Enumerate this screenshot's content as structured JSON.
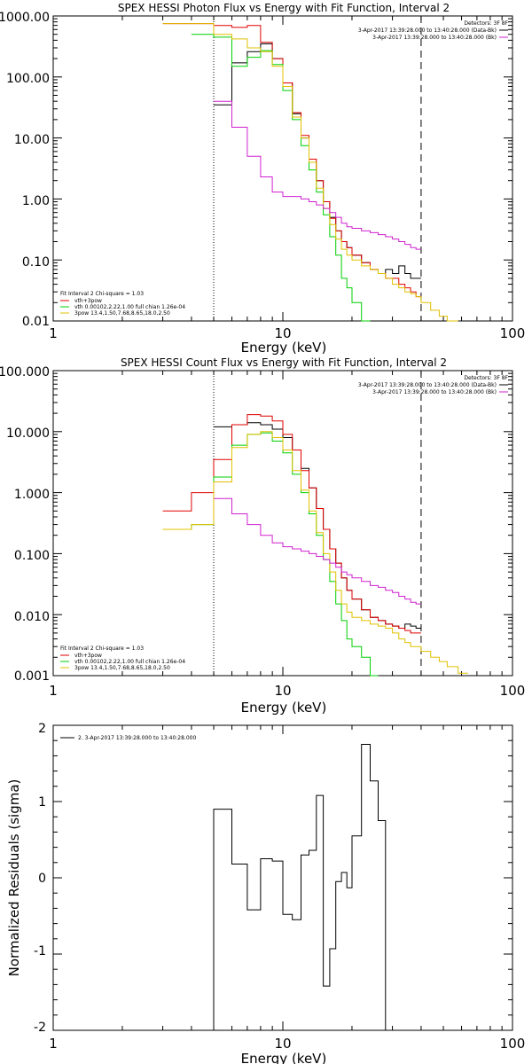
{
  "chart_data": [
    {
      "type": "line",
      "title": "SPEX HESSI Photon Flux vs Energy with Fit Function, Interval 2",
      "xlabel": "Energy (keV)",
      "ylabel": "",
      "xscale": "log",
      "yscale": "log",
      "xlim": [
        1,
        100
      ],
      "ylim": [
        0.01,
        1000
      ],
      "x_ticks": [
        "1",
        "10",
        "100"
      ],
      "y_ticks": [
        "0.01",
        "0.10",
        "1.00",
        "10.00",
        "100.00",
        "1000.00"
      ],
      "header": [
        "Detectors: 3F 8F",
        "3-Apr-2017 13:39:28.000 to 13:40:28.000 (Data-Bk)",
        "3-Apr-2017 13:39:28.000 to 13:40:28.000 (Bk)"
      ],
      "header_colors": [
        "#000000",
        "#000000",
        "#d020d0"
      ],
      "legend": [
        "Fit Interval 2   Chi-square = 1.03",
        "vth+3pow",
        "vth 0.00102,2.22,1.00  full chian 1.26e-04",
        "3pow 13.4,1.50,7.68,8.65,18.0,2.50"
      ],
      "legend_colors": [
        "#000000",
        "#e00000",
        "#00d000",
        "#e0c000"
      ],
      "vlines": [
        {
          "x": 5.0,
          "style": "dotted",
          "color": "#000000"
        },
        {
          "x": 40.0,
          "style": "dashed",
          "color": "#000000"
        }
      ],
      "series": [
        {
          "color": "#000000",
          "x": [
            3,
            4,
            5,
            6,
            7,
            8,
            9,
            10,
            11,
            12,
            13,
            14,
            15,
            16,
            17,
            18,
            19,
            20,
            22,
            24,
            26,
            28,
            30,
            32,
            34,
            36,
            38,
            40
          ],
          "values": [
            null,
            null,
            35,
            170,
            260,
            350,
            200,
            80,
            25,
            10,
            4,
            2.0,
            0.9,
            0.5,
            0.3,
            0.2,
            0.16,
            0.12,
            0.09,
            0.07,
            0.06,
            0.07,
            0.06,
            0.08,
            0.06,
            0.05,
            0.05,
            null
          ]
        },
        {
          "color": "#e00000",
          "x": [
            3,
            4,
            5,
            6,
            7,
            8,
            9,
            10,
            11,
            12,
            13,
            14,
            15,
            16,
            17,
            18,
            19,
            20,
            22,
            24,
            26,
            28,
            30,
            32,
            34,
            36,
            38,
            40
          ],
          "values": [
            750,
            750,
            700,
            650,
            700,
            370,
            200,
            80,
            26,
            11,
            4.5,
            2.0,
            0.9,
            0.48,
            0.3,
            0.2,
            0.16,
            0.12,
            0.09,
            0.07,
            0.06,
            0.05,
            0.05,
            0.04,
            0.035,
            0.03,
            0.025,
            null
          ]
        },
        {
          "color": "#00d000",
          "x": [
            3,
            4,
            5,
            6,
            7,
            8,
            9,
            10,
            11,
            12,
            13,
            14,
            15,
            16,
            17,
            18,
            19,
            20,
            22,
            24,
            26,
            28,
            30,
            32,
            34,
            36,
            38,
            40
          ],
          "values": [
            null,
            500,
            450,
            150,
            210,
            270,
            160,
            60,
            20,
            7.5,
            3.0,
            1.3,
            0.55,
            0.24,
            0.12,
            0.05,
            0.035,
            0.02,
            0.01,
            null,
            null,
            null,
            null,
            null,
            null,
            null,
            null,
            null
          ]
        },
        {
          "color": "#e0c000",
          "x": [
            3,
            4,
            5,
            6,
            7,
            8,
            9,
            10,
            11,
            12,
            13,
            14,
            15,
            16,
            17,
            18,
            19,
            20,
            22,
            24,
            26,
            28,
            30,
            32,
            34,
            36,
            38,
            40,
            44,
            48,
            52,
            58
          ],
          "values": [
            750,
            750,
            500,
            420,
            300,
            260,
            150,
            70,
            22,
            10,
            4.0,
            1.5,
            0.7,
            0.38,
            0.22,
            0.15,
            0.12,
            0.1,
            0.08,
            0.07,
            0.06,
            0.05,
            0.04,
            0.035,
            0.03,
            0.028,
            0.025,
            0.02,
            0.015,
            0.012,
            0.01,
            null
          ]
        },
        {
          "color": "#d020d0",
          "x": [
            5,
            6,
            7,
            8,
            9,
            10,
            11,
            12,
            13,
            14,
            15,
            16,
            17,
            18,
            19,
            20,
            22,
            24,
            26,
            28,
            30,
            32,
            34,
            36,
            38,
            40
          ],
          "values": [
            40,
            15,
            5.0,
            2.3,
            1.3,
            1.1,
            1.1,
            1.0,
            0.9,
            0.8,
            0.7,
            0.6,
            0.5,
            0.4,
            0.35,
            0.33,
            0.3,
            0.28,
            0.26,
            0.24,
            0.22,
            0.2,
            0.18,
            0.16,
            0.15,
            null
          ]
        }
      ]
    },
    {
      "type": "line",
      "title": "SPEX HESSI Count Flux vs Energy with Fit Function, Interval 2",
      "xlabel": "Energy (keV)",
      "ylabel": "",
      "xscale": "log",
      "yscale": "log",
      "xlim": [
        1,
        100
      ],
      "ylim": [
        0.001,
        100
      ],
      "x_ticks": [
        "1",
        "10",
        "100"
      ],
      "y_ticks": [
        "0.001",
        "0.010",
        "0.100",
        "1.000",
        "10.000",
        "100.000"
      ],
      "header": [
        "Detectors: 3F 8F",
        "3-Apr-2017 13:39:28.000 to 13:40:28.000 (Data-Bk)",
        "3-Apr-2017 13:39:28.000 to 13:40:28.000 (Bk)"
      ],
      "header_colors": [
        "#000000",
        "#000000",
        "#d020d0"
      ],
      "legend": [
        "Fit Interval 2   Chi-square = 1.03",
        "vth+3pow",
        "vth 0.00102,2.22,1.00  full chian 1.26e-04",
        "3pow 13.4,1.50,7.68,8.65,18.0,2.50"
      ],
      "legend_colors": [
        "#000000",
        "#e00000",
        "#00d000",
        "#e0c000"
      ],
      "vlines": [
        {
          "x": 5.0,
          "style": "dotted",
          "color": "#000000"
        },
        {
          "x": 40.0,
          "style": "dashed",
          "color": "#000000"
        }
      ],
      "series": [
        {
          "color": "#000000",
          "x": [
            3,
            4,
            5,
            6,
            7,
            8,
            9,
            10,
            11,
            12,
            13,
            14,
            15,
            16,
            17,
            18,
            19,
            20,
            22,
            24,
            26,
            28,
            30,
            32,
            34,
            36,
            38,
            40
          ],
          "values": [
            null,
            null,
            12,
            13,
            14,
            13,
            11,
            8,
            5,
            2.5,
            1.2,
            0.55,
            0.25,
            0.12,
            0.07,
            0.04,
            0.025,
            0.018,
            0.012,
            0.009,
            0.008,
            0.007,
            0.0065,
            0.006,
            0.007,
            0.0065,
            0.006,
            null
          ]
        },
        {
          "color": "#e00000",
          "x": [
            3,
            4,
            5,
            6,
            7,
            8,
            9,
            10,
            11,
            12,
            13,
            14,
            15,
            16,
            17,
            18,
            19,
            20,
            22,
            24,
            26,
            28,
            30,
            32,
            34,
            36,
            38,
            40
          ],
          "values": [
            0.5,
            1.0,
            3.5,
            13,
            19,
            18,
            15,
            9,
            5,
            2.3,
            1.2,
            0.55,
            0.25,
            0.12,
            0.07,
            0.04,
            0.025,
            0.018,
            0.012,
            0.009,
            0.008,
            0.007,
            0.0065,
            0.006,
            0.0055,
            0.005,
            0.005,
            null
          ]
        },
        {
          "color": "#00d000",
          "x": [
            3,
            4,
            5,
            6,
            7,
            8,
            9,
            10,
            11,
            12,
            13,
            14,
            15,
            16,
            17,
            18,
            19,
            20,
            22,
            24,
            26,
            28,
            30,
            32,
            34,
            36,
            38,
            40
          ],
          "values": [
            0.25,
            0.3,
            1.8,
            6,
            9,
            9.5,
            7,
            4.5,
            2.0,
            1.0,
            0.45,
            0.2,
            0.08,
            0.035,
            0.015,
            0.008,
            0.004,
            0.003,
            0.002,
            0.001,
            null,
            null,
            null,
            null,
            null,
            null,
            null,
            null
          ]
        },
        {
          "color": "#e0c000",
          "x": [
            3,
            4,
            5,
            6,
            7,
            8,
            9,
            10,
            11,
            12,
            13,
            14,
            15,
            16,
            17,
            18,
            19,
            20,
            22,
            24,
            26,
            28,
            30,
            32,
            34,
            36,
            38,
            40,
            44,
            48,
            52,
            58,
            64
          ],
          "values": [
            0.25,
            0.3,
            1.5,
            5.5,
            9,
            10,
            8,
            5,
            2.3,
            1.1,
            0.5,
            0.22,
            0.1,
            0.05,
            0.025,
            0.015,
            0.011,
            0.009,
            0.008,
            0.007,
            0.0065,
            0.006,
            0.005,
            0.004,
            0.0035,
            0.003,
            0.003,
            0.0025,
            0.002,
            0.0017,
            0.0014,
            0.0011,
            null
          ]
        },
        {
          "color": "#d020d0",
          "x": [
            5,
            6,
            7,
            8,
            9,
            10,
            11,
            12,
            13,
            14,
            15,
            16,
            17,
            18,
            19,
            20,
            22,
            24,
            26,
            28,
            30,
            32,
            34,
            36,
            38,
            40
          ],
          "values": [
            0.8,
            0.45,
            0.3,
            0.2,
            0.15,
            0.13,
            0.12,
            0.11,
            0.1,
            0.09,
            0.08,
            0.07,
            0.06,
            0.05,
            0.045,
            0.04,
            0.035,
            0.03,
            0.028,
            0.025,
            0.023,
            0.02,
            0.018,
            0.016,
            0.015,
            null
          ]
        }
      ]
    },
    {
      "type": "line",
      "title": "",
      "xlabel": "Energy (keV)",
      "ylabel": "Normalized Residuals (sigma)",
      "xscale": "log",
      "yscale": "linear",
      "xlim": [
        1,
        100
      ],
      "ylim": [
        -2,
        2
      ],
      "x_ticks": [
        "1",
        "10",
        "100"
      ],
      "y_ticks": [
        "-2",
        "-1",
        "0",
        "1",
        "2"
      ],
      "legend": [
        "2.  3-Apr-2017 13:39:28.000 to 13:40:28.000"
      ],
      "legend_colors": [
        "#000000"
      ],
      "series": [
        {
          "color": "#000000",
          "x": [
            5.0,
            6.0,
            7.0,
            8.0,
            9.0,
            10.0,
            11.0,
            12.0,
            13.0,
            14.0,
            15.0,
            16.0,
            17.0,
            18.0,
            19.0,
            20.0,
            22.0,
            24.0,
            26.0,
            28.0,
            30.0,
            32.0,
            34.0,
            36.0,
            38.0,
            40.0
          ],
          "values": [
            0.9,
            0.18,
            -0.42,
            0.25,
            0.22,
            -0.48,
            -0.55,
            0.3,
            0.36,
            1.08,
            -1.42,
            -0.93,
            -0.05,
            0.07,
            -0.13,
            0.55,
            1.75,
            1.27,
            0.75,
            null,
            null,
            null,
            null,
            null,
            null,
            null
          ]
        }
      ]
    }
  ]
}
